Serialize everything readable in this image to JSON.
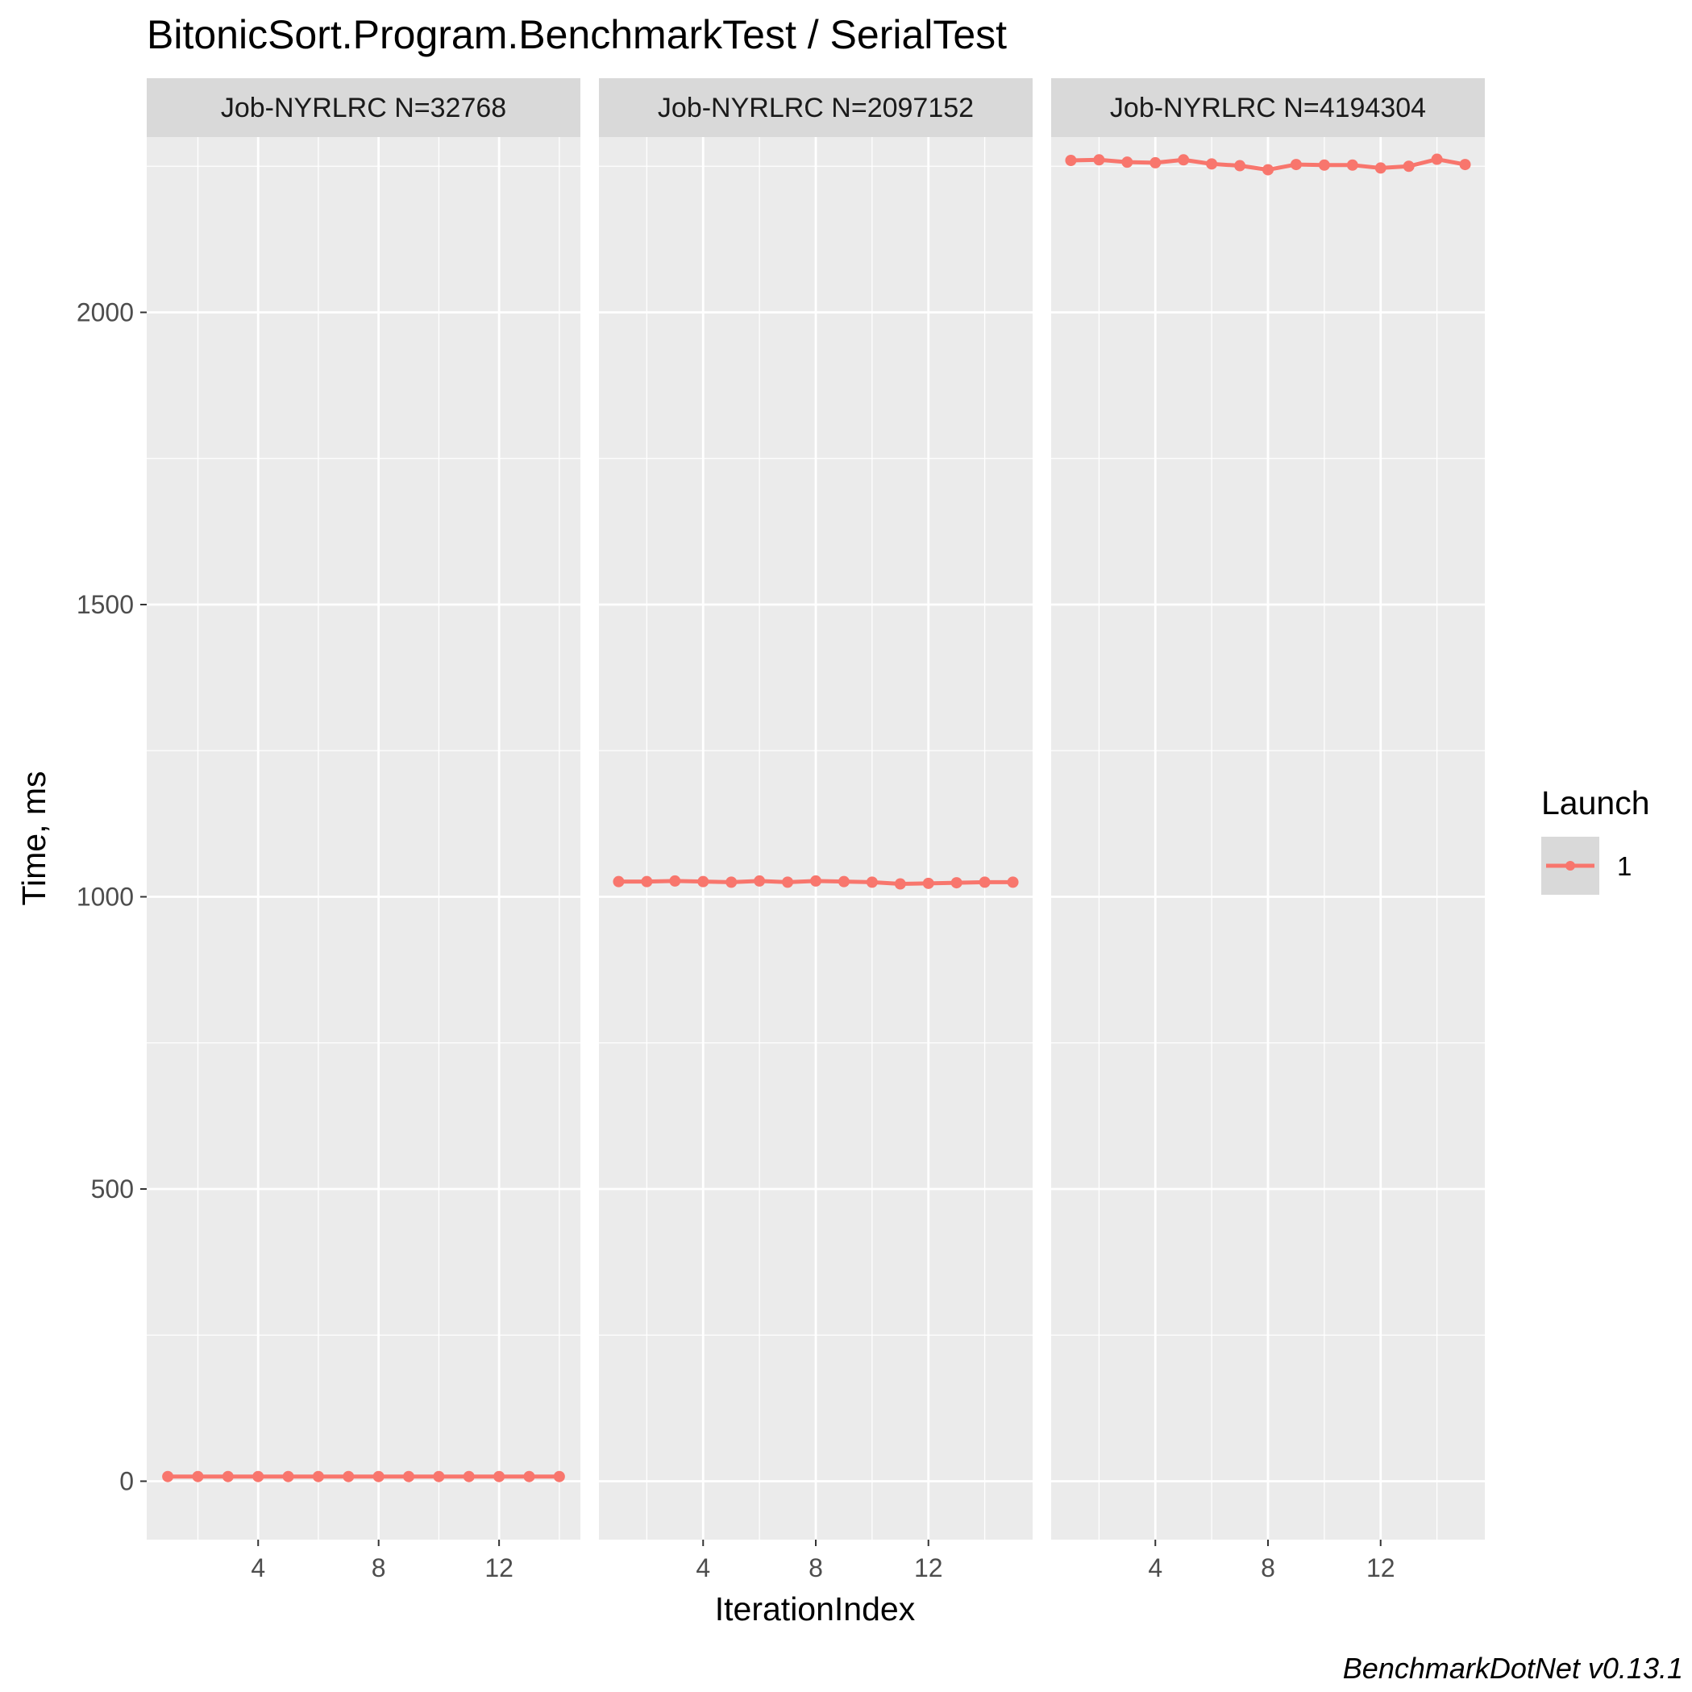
{
  "caption": "BenchmarkDotNet v0.13.1",
  "chart_data": {
    "type": "line",
    "title": "BitonicSort.Program.BenchmarkTest / SerialTest",
    "xlabel": "IterationIndex",
    "ylabel": "Time, ms",
    "ylim": [
      -100,
      2300
    ],
    "yticks": [
      0,
      500,
      1000,
      1500,
      2000
    ],
    "xticks": [
      4,
      8,
      12
    ],
    "grid": true,
    "legend": {
      "title": "Launch",
      "position": "right",
      "entries": [
        "1"
      ]
    },
    "series_color": "#F8766D",
    "panel_background": "#EBEBEB",
    "strip_background": "#D9D9D9",
    "facets": [
      {
        "label": "Job-NYRLRC N=32768",
        "xlim": [
          0.3,
          14.7
        ],
        "series": [
          {
            "name": "1",
            "x": [
              1,
              2,
              3,
              4,
              5,
              6,
              7,
              8,
              9,
              10,
              11,
              12,
              13,
              14
            ],
            "values": [
              8,
              8,
              8,
              8,
              8,
              8,
              8,
              8,
              8,
              8,
              8,
              8,
              8,
              8
            ]
          }
        ]
      },
      {
        "label": "Job-NYRLRC N=2097152",
        "xlim": [
          0.3,
          15.7
        ],
        "series": [
          {
            "name": "1",
            "x": [
              1,
              2,
              3,
              4,
              5,
              6,
              7,
              8,
              9,
              10,
              11,
              12,
              13,
              14,
              15
            ],
            "values": [
              1026,
              1026,
              1027,
              1026,
              1025,
              1027,
              1025,
              1027,
              1026,
              1025,
              1022,
              1023,
              1024,
              1025,
              1025
            ]
          }
        ]
      },
      {
        "label": "Job-NYRLRC N=4194304",
        "xlim": [
          0.3,
          15.7
        ],
        "series": [
          {
            "name": "1",
            "x": [
              1,
              2,
              3,
              4,
              5,
              6,
              7,
              8,
              9,
              10,
              11,
              12,
              13,
              14,
              15
            ],
            "values": [
              2260,
              2261,
              2257,
              2256,
              2261,
              2254,
              2251,
              2244,
              2253,
              2252,
              2252,
              2247,
              2250,
              2262,
              2253
            ]
          }
        ]
      }
    ]
  }
}
